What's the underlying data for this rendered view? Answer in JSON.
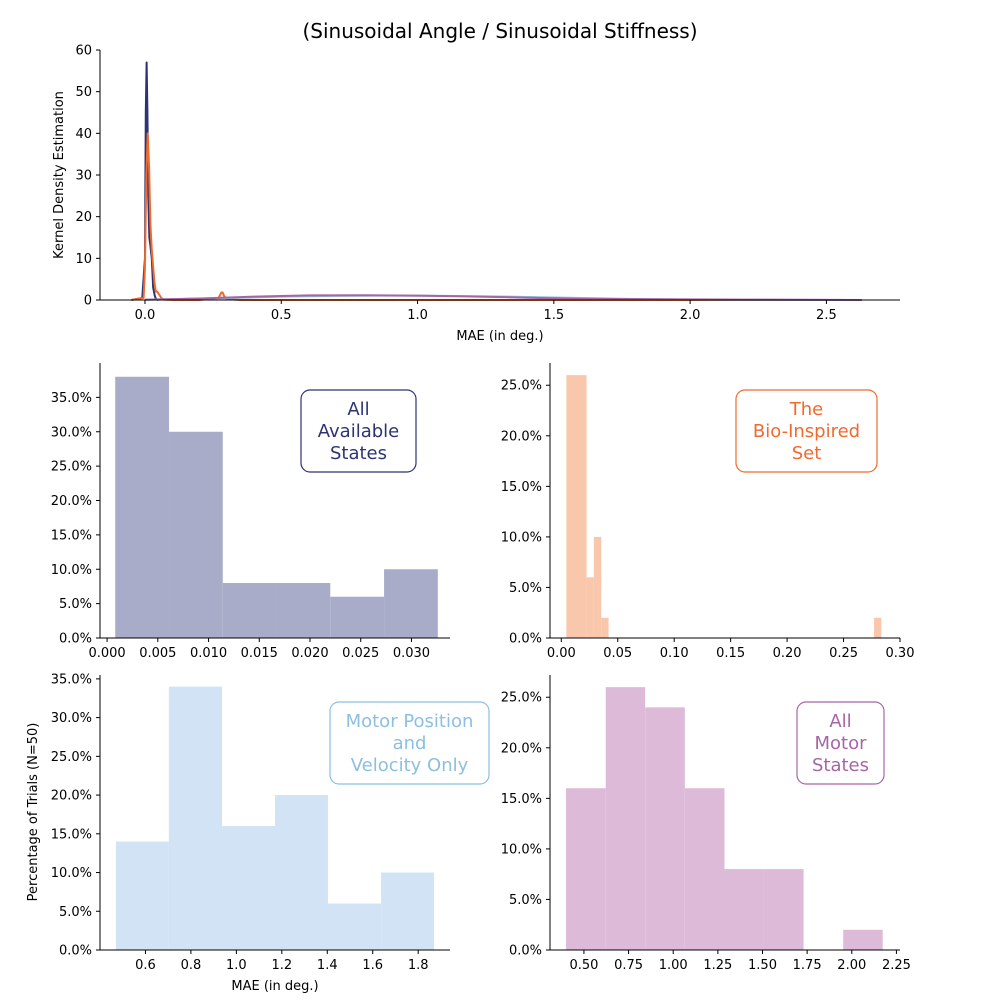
{
  "figure": {
    "title": "(Sinusoidal Angle / Sinusoidal Stiffness)",
    "shared_ylabel": "Percentage of Trials (N=50)"
  },
  "chart_data": [
    {
      "id": "kde",
      "type": "line",
      "title": "",
      "xlabel": "MAE (in deg.)",
      "ylabel": "Kernel Density Estimation",
      "xlim": [
        -0.165,
        2.77
      ],
      "ylim": [
        0,
        60
      ],
      "xticks": [
        0.0,
        0.5,
        1.0,
        1.5,
        2.0,
        2.5
      ],
      "xtick_labels": [
        "0.0",
        "0.5",
        "1.0",
        "1.5",
        "2.0",
        "2.5"
      ],
      "yticks": [
        0,
        10,
        20,
        30,
        40,
        50,
        60
      ],
      "ytick_labels": [
        "0",
        "10",
        "20",
        "30",
        "40",
        "50",
        "60"
      ],
      "grid": false,
      "series": [
        {
          "color": "#2c3474",
          "x": [
            -0.05,
            -0.01,
            0.0,
            0.003,
            0.006,
            0.009,
            0.012,
            0.016,
            0.02,
            0.025,
            0.03,
            0.036,
            0.04,
            0.045,
            0.05
          ],
          "y": [
            0,
            0.5,
            10,
            45,
            57,
            45,
            25,
            15,
            13,
            10,
            3,
            1,
            0.3,
            0.1,
            0
          ]
        },
        {
          "color": "#f06a2e",
          "x": [
            -0.05,
            -0.005,
            0.0,
            0.005,
            0.01,
            0.015,
            0.02,
            0.025,
            0.03,
            0.035,
            0.04,
            0.045,
            0.05,
            0.06,
            0.07,
            0.1,
            0.2,
            0.27,
            0.28,
            0.285,
            0.29,
            0.3,
            0.35,
            0.5,
            0.7,
            0.8,
            1.0,
            1.5,
            2.0,
            2.6
          ],
          "y": [
            0,
            0.5,
            8,
            30,
            40,
            32,
            18,
            12,
            8,
            4,
            2,
            2,
            1.5,
            0.5,
            0.1,
            0,
            0,
            0.5,
            1.8,
            1.8,
            1.0,
            0.2,
            0,
            0,
            0,
            0,
            0,
            0,
            0,
            0
          ]
        },
        {
          "color": "#8cbfe0",
          "x": [
            0.0,
            0.3,
            0.5,
            0.7,
            0.9,
            1.1,
            1.3,
            1.5,
            1.7,
            1.9,
            2.1,
            2.3,
            2.6
          ],
          "y": [
            0.1,
            0.45,
            0.8,
            1.0,
            1.05,
            1.0,
            0.85,
            0.6,
            0.35,
            0.15,
            0.06,
            0.02,
            0
          ]
        },
        {
          "color": "#a666a6",
          "x": [
            0.0,
            0.2,
            0.4,
            0.6,
            0.8,
            1.0,
            1.2,
            1.4,
            1.6,
            1.8,
            2.0,
            2.2,
            2.4,
            2.63
          ],
          "y": [
            0.05,
            0.35,
            0.8,
            1.1,
            1.15,
            1.05,
            0.85,
            0.55,
            0.3,
            0.2,
            0.15,
            0.1,
            0.05,
            0
          ]
        }
      ]
    },
    {
      "id": "hist-all-available",
      "type": "bar",
      "legend_label": "All\nAvailable\nStates",
      "legend_lines": [
        "All",
        "Available",
        "States"
      ],
      "legend_placement": "top-right",
      "color": "#2c3474",
      "fill": "#a9acc8",
      "xlim": [
        -0.0007,
        0.0338
      ],
      "ylim": [
        0,
        0.4
      ],
      "xticks": [
        0.0,
        0.005,
        0.01,
        0.015,
        0.02,
        0.025,
        0.03
      ],
      "xtick_labels": [
        "0.000",
        "0.005",
        "0.010",
        "0.015",
        "0.020",
        "0.025",
        "0.030"
      ],
      "yticks": [
        0,
        0.05,
        0.1,
        0.15,
        0.2,
        0.25,
        0.3,
        0.35
      ],
      "ytick_labels": [
        "0.0%",
        "5.0%",
        "10.0%",
        "15.0%",
        "20.0%",
        "25.0%",
        "30.0%",
        "35.0%"
      ],
      "bin_edges": [
        0.0008,
        0.0061,
        0.0114,
        0.0167,
        0.022,
        0.0273,
        0.0326
      ],
      "values": [
        0.38,
        0.3,
        0.08,
        0.08,
        0.06,
        0.1
      ]
    },
    {
      "id": "hist-bio-inspired",
      "type": "bar",
      "legend_label": "The\nBio-Inspired\nSet",
      "legend_lines": [
        "The",
        "Bio-Inspired",
        "Set"
      ],
      "legend_placement": "top-right",
      "color": "#f06a2e",
      "fill": "#f9c8ac",
      "xlim": [
        -0.01,
        0.3
      ],
      "ylim": [
        0,
        0.272
      ],
      "xticks": [
        0.0,
        0.05,
        0.1,
        0.15,
        0.2,
        0.25,
        0.3
      ],
      "xtick_labels": [
        "0.00",
        "0.05",
        "0.10",
        "0.15",
        "0.20",
        "0.25",
        "0.30"
      ],
      "yticks": [
        0,
        0.05,
        0.1,
        0.15,
        0.2,
        0.25
      ],
      "ytick_labels": [
        "0.0%",
        "5.0%",
        "10.0%",
        "15.0%",
        "20.0%",
        "25.0%"
      ],
      "bin_edges": [
        0.0045,
        0.0224,
        0.0289,
        0.0354,
        0.0419,
        0.0535,
        0.277,
        0.2835
      ],
      "values": [
        0.26,
        0.06,
        0.1,
        0.02,
        0.0,
        0.0,
        0.02
      ]
    },
    {
      "id": "hist-motor-position-velocity",
      "type": "bar",
      "legend_label": "Motor Position\nand\nVelocity Only",
      "legend_lines": [
        "Motor Position",
        "and",
        "Velocity Only"
      ],
      "legend_placement": "top-right",
      "color": "#8cbfe0",
      "fill": "#d1e3f4",
      "xlim": [
        0.4,
        1.94
      ],
      "ylim": [
        0,
        0.355
      ],
      "xticks": [
        0.6,
        0.8,
        1.0,
        1.2,
        1.4,
        1.6,
        1.8
      ],
      "xtick_labels": [
        "0.6",
        "0.8",
        "1.0",
        "1.2",
        "1.4",
        "1.6",
        "1.8"
      ],
      "yticks": [
        0,
        0.05,
        0.1,
        0.15,
        0.2,
        0.25,
        0.3,
        0.35
      ],
      "ytick_labels": [
        "0.0%",
        "5.0%",
        "10.0%",
        "15.0%",
        "20.0%",
        "25.0%",
        "30.0%",
        "35.0%"
      ],
      "xlabel": "MAE (in deg.)",
      "bin_edges": [
        0.47,
        0.703,
        0.937,
        1.17,
        1.403,
        1.637,
        1.87
      ],
      "values": [
        0.14,
        0.34,
        0.16,
        0.2,
        0.06,
        0.1
      ]
    },
    {
      "id": "hist-all-motor",
      "type": "bar",
      "legend_label": "All\nMotor\nStates",
      "legend_lines": [
        "All",
        "Motor",
        "States"
      ],
      "legend_placement": "top-right",
      "color": "#a666a6",
      "fill": "#dcbad8",
      "xlim": [
        0.31,
        2.27
      ],
      "ylim": [
        0,
        0.272
      ],
      "xticks": [
        0.5,
        0.75,
        1.0,
        1.25,
        1.5,
        1.75,
        2.0,
        2.25
      ],
      "xtick_labels": [
        "0.50",
        "0.75",
        "1.00",
        "1.25",
        "1.50",
        "1.75",
        "2.00",
        "2.25"
      ],
      "yticks": [
        0,
        0.05,
        0.1,
        0.15,
        0.2,
        0.25
      ],
      "ytick_labels": [
        "0.0%",
        "5.0%",
        "10.0%",
        "15.0%",
        "20.0%",
        "25.0%"
      ],
      "bin_edges": [
        0.4,
        0.622,
        0.843,
        1.065,
        1.287,
        1.508,
        1.73,
        1.952,
        2.173
      ],
      "values": [
        0.16,
        0.26,
        0.24,
        0.16,
        0.08,
        0.08,
        0.0,
        0.02
      ]
    }
  ]
}
